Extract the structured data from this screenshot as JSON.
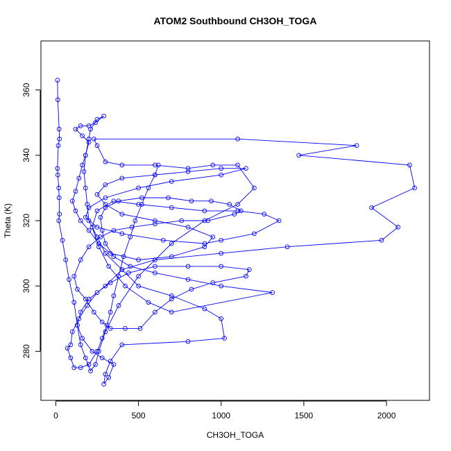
{
  "chart_data": {
    "type": "line",
    "title": "ATOM2 Southbound CH3OH_TOGA",
    "xlabel": "CH3OH_TOGA",
    "ylabel": "Theta (K)",
    "xlim": [
      -90,
      2260
    ],
    "ylim": [
      265,
      375
    ],
    "x_ticks": [
      0,
      500,
      1000,
      1500,
      2000
    ],
    "y_ticks": [
      280,
      300,
      320,
      340,
      360
    ],
    "marker": "open-circle",
    "line_connected": true,
    "grid": false,
    "legend": "none",
    "series_color": "#0000ff",
    "series": [
      {
        "points": [
          [
            10,
            363
          ],
          [
            12,
            357
          ],
          [
            20,
            348
          ],
          [
            22,
            345
          ],
          [
            15,
            343
          ],
          [
            10,
            336
          ],
          [
            12,
            334
          ],
          [
            18,
            330
          ],
          [
            20,
            327
          ],
          [
            22,
            322
          ],
          [
            18,
            320
          ],
          [
            40,
            314
          ],
          [
            60,
            308
          ],
          [
            80,
            302
          ],
          [
            110,
            295
          ],
          [
            130,
            288
          ],
          [
            150,
            282
          ],
          [
            180,
            278
          ],
          [
            210,
            274
          ],
          [
            240,
            276
          ],
          [
            260,
            280
          ],
          [
            300,
            286
          ],
          [
            380,
            294
          ],
          [
            500,
            303
          ],
          [
            700,
            313
          ],
          [
            900,
            320
          ],
          [
            1100,
            325
          ],
          [
            1200,
            330
          ],
          [
            1100,
            337
          ],
          [
            950,
            337
          ],
          [
            800,
            336
          ],
          [
            600,
            337
          ],
          [
            400,
            337
          ],
          [
            300,
            338
          ],
          [
            250,
            343
          ],
          [
            230,
            345
          ],
          [
            1100,
            345
          ],
          [
            1820,
            343
          ],
          [
            1470,
            340
          ],
          [
            2140,
            337
          ],
          [
            2170,
            330
          ],
          [
            1910,
            324
          ],
          [
            2070,
            318
          ],
          [
            1970,
            314
          ],
          [
            1400,
            312
          ],
          [
            1000,
            310
          ],
          [
            600,
            308
          ],
          [
            400,
            305
          ],
          [
            300,
            300
          ],
          [
            200,
            296
          ],
          [
            150,
            292
          ],
          [
            130,
            288
          ],
          [
            160,
            284
          ],
          [
            220,
            280
          ],
          [
            280,
            278
          ],
          [
            350,
            276
          ],
          [
            320,
            272
          ],
          [
            290,
            270
          ],
          [
            300,
            273
          ],
          [
            330,
            277
          ],
          [
            400,
            282
          ],
          [
            800,
            283
          ],
          [
            1020,
            284
          ],
          [
            1000,
            290
          ],
          [
            900,
            293
          ],
          [
            700,
            297
          ],
          [
            500,
            300
          ],
          [
            400,
            305
          ],
          [
            300,
            310
          ],
          [
            250,
            315
          ],
          [
            200,
            320
          ],
          [
            190,
            325
          ],
          [
            180,
            330
          ],
          [
            170,
            335
          ],
          [
            180,
            340
          ],
          [
            200,
            345
          ],
          [
            210,
            348
          ],
          [
            250,
            351
          ],
          [
            290,
            352
          ],
          [
            240,
            350
          ],
          [
            200,
            349
          ],
          [
            150,
            349
          ],
          [
            120,
            348
          ],
          [
            160,
            346
          ],
          [
            200,
            344
          ],
          [
            180,
            340
          ],
          [
            160,
            337
          ],
          [
            140,
            333
          ],
          [
            120,
            329
          ],
          [
            100,
            326
          ],
          [
            120,
            323
          ],
          [
            150,
            320
          ],
          [
            200,
            317
          ],
          [
            260,
            313
          ],
          [
            330,
            310
          ],
          [
            500,
            308
          ],
          [
            700,
            309
          ],
          [
            900,
            312
          ],
          [
            950,
            315
          ],
          [
            800,
            318
          ],
          [
            600,
            320
          ],
          [
            400,
            322
          ],
          [
            300,
            325
          ],
          [
            250,
            328
          ],
          [
            300,
            331
          ],
          [
            400,
            333
          ],
          [
            600,
            334
          ],
          [
            800,
            335
          ],
          [
            1000,
            336
          ],
          [
            1150,
            336
          ],
          [
            1000,
            334
          ],
          [
            700,
            332
          ],
          [
            500,
            330
          ],
          [
            300,
            327
          ],
          [
            200,
            324
          ],
          [
            180,
            321
          ],
          [
            250,
            318
          ],
          [
            400,
            316
          ],
          [
            650,
            314
          ],
          [
            900,
            313
          ],
          [
            1000,
            314
          ],
          [
            1200,
            316
          ],
          [
            1350,
            320
          ],
          [
            1260,
            322
          ],
          [
            1100,
            323
          ],
          [
            900,
            323
          ],
          [
            700,
            324
          ],
          [
            500,
            325
          ],
          [
            350,
            326
          ],
          [
            250,
            323
          ],
          [
            220,
            318
          ],
          [
            260,
            312
          ],
          [
            320,
            306
          ],
          [
            420,
            300
          ],
          [
            560,
            295
          ],
          [
            700,
            292
          ],
          [
            1310,
            298
          ],
          [
            1000,
            300
          ],
          [
            800,
            302
          ],
          [
            600,
            304
          ],
          [
            450,
            306
          ],
          [
            350,
            309
          ],
          [
            300,
            313
          ],
          [
            280,
            317
          ],
          [
            270,
            321
          ],
          [
            300,
            324
          ],
          [
            380,
            326
          ],
          [
            520,
            327
          ],
          [
            680,
            327
          ],
          [
            820,
            326
          ],
          [
            940,
            326
          ],
          [
            1050,
            325
          ],
          [
            1120,
            323
          ],
          [
            1080,
            322
          ],
          [
            920,
            320
          ],
          [
            760,
            320
          ],
          [
            600,
            319
          ],
          [
            460,
            318
          ],
          [
            350,
            317
          ],
          [
            270,
            315
          ],
          [
            200,
            312
          ],
          [
            150,
            308
          ],
          [
            110,
            303
          ],
          [
            130,
            299
          ],
          [
            180,
            296
          ],
          [
            230,
            292
          ],
          [
            280,
            289
          ],
          [
            330,
            287
          ],
          [
            420,
            287
          ],
          [
            510,
            287
          ],
          [
            600,
            292
          ],
          [
            700,
            296
          ],
          [
            820,
            299
          ],
          [
            950,
            301
          ],
          [
            1150,
            303
          ],
          [
            1170,
            305
          ],
          [
            1000,
            306
          ],
          [
            800,
            306
          ],
          [
            600,
            306
          ],
          [
            440,
            304
          ],
          [
            330,
            301
          ],
          [
            250,
            298
          ],
          [
            190,
            294
          ],
          [
            140,
            290
          ],
          [
            100,
            286
          ],
          [
            90,
            282
          ],
          [
            70,
            281
          ],
          [
            90,
            278
          ],
          [
            110,
            275
          ],
          [
            150,
            275
          ],
          [
            200,
            276
          ],
          [
            250,
            280
          ],
          [
            280,
            284
          ],
          [
            310,
            288
          ],
          [
            330,
            292
          ],
          [
            350,
            297
          ],
          [
            380,
            303
          ],
          [
            410,
            309
          ],
          [
            450,
            315
          ],
          [
            480,
            320
          ],
          [
            520,
            325
          ],
          [
            560,
            330
          ],
          [
            600,
            334
          ],
          [
            620,
            337
          ]
        ]
      }
    ]
  }
}
